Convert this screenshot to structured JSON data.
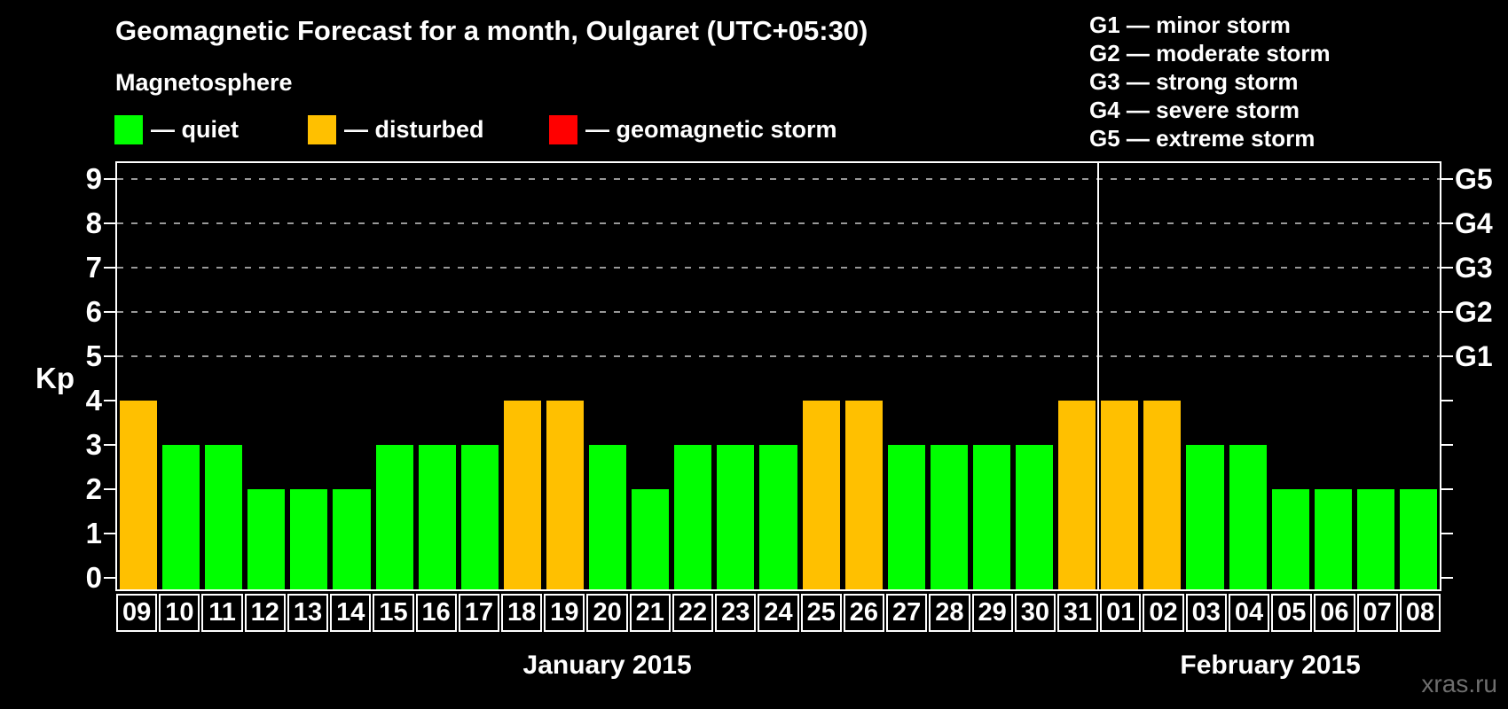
{
  "title": "Geomagnetic Forecast for a month, Oulgaret (UTC+05:30)",
  "subtitle": "Magnetosphere",
  "legend": [
    {
      "key": "quiet",
      "label": "— quiet",
      "color": "#00FF00"
    },
    {
      "key": "disturbed",
      "label": "— disturbed",
      "color": "#FFC000"
    },
    {
      "key": "storm",
      "label": "— geomagnetic storm",
      "color": "#FF0000"
    }
  ],
  "g_scale_legend": [
    "G1 — minor storm",
    "G2 — moderate storm",
    "G3 — strong storm",
    "G4 — severe storm",
    "G5 — extreme storm"
  ],
  "watermark": "xras.ru",
  "chart_data": {
    "type": "bar",
    "title": "Geomagnetic Forecast for a month, Oulgaret (UTC+05:30)",
    "ylabel": "Kp",
    "ylim": [
      -0.3,
      9.4
    ],
    "yticks": [
      0,
      1,
      2,
      3,
      4,
      5,
      6,
      7,
      8,
      9
    ],
    "gridlines": [
      5,
      6,
      7,
      8,
      9
    ],
    "grid_style": "dashed",
    "legend_position": "top",
    "right_axis": [
      {
        "kp": 5,
        "label": "G1"
      },
      {
        "kp": 6,
        "label": "G2"
      },
      {
        "kp": 7,
        "label": "G3"
      },
      {
        "kp": 8,
        "label": "G4"
      },
      {
        "kp": 9,
        "label": "G5"
      }
    ],
    "categories": [
      "09",
      "10",
      "11",
      "12",
      "13",
      "14",
      "15",
      "16",
      "17",
      "18",
      "19",
      "20",
      "21",
      "22",
      "23",
      "24",
      "25",
      "26",
      "27",
      "28",
      "29",
      "30",
      "31",
      "01",
      "02",
      "03",
      "04",
      "05",
      "06",
      "07",
      "08"
    ],
    "values": [
      4,
      3,
      3,
      2,
      2,
      2,
      3,
      3,
      3,
      4,
      4,
      3,
      2,
      3,
      3,
      3,
      4,
      4,
      3,
      3,
      3,
      3,
      4,
      4,
      4,
      3,
      3,
      2,
      2,
      2,
      2
    ],
    "states": [
      "disturbed",
      "quiet",
      "quiet",
      "quiet",
      "quiet",
      "quiet",
      "quiet",
      "quiet",
      "quiet",
      "disturbed",
      "disturbed",
      "quiet",
      "quiet",
      "quiet",
      "quiet",
      "quiet",
      "disturbed",
      "disturbed",
      "quiet",
      "quiet",
      "quiet",
      "quiet",
      "disturbed",
      "disturbed",
      "disturbed",
      "quiet",
      "quiet",
      "quiet",
      "quiet",
      "quiet",
      "quiet"
    ],
    "state_colors": {
      "quiet": "#00FF00",
      "disturbed": "#FFC000",
      "storm": "#FF0000"
    },
    "months": [
      {
        "label": "January 2015",
        "days": 23
      },
      {
        "label": "February 2015",
        "days": 8
      }
    ],
    "month_separator_after_index": 22
  }
}
